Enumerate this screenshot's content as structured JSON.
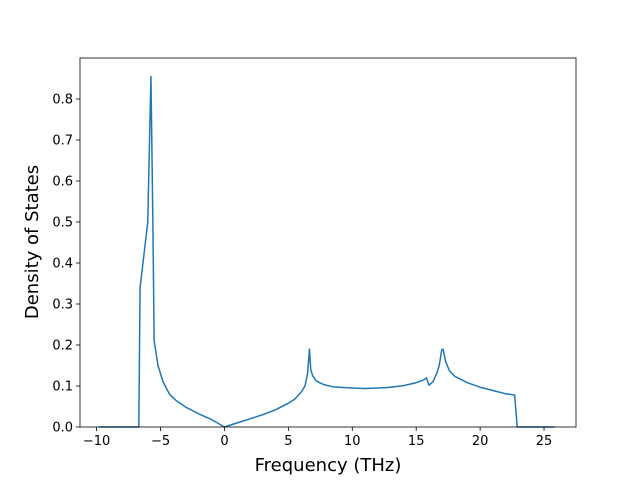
{
  "chart_data": {
    "type": "line",
    "title": "",
    "xlabel": "Frequency (THz)",
    "ylabel": "Density of States",
    "xlim": [
      -11.3,
      27.5
    ],
    "ylim": [
      0.0,
      0.9
    ],
    "xticks": [
      -10,
      -5,
      0,
      5,
      10,
      15,
      20,
      25
    ],
    "xtick_labels": [
      "−10",
      "−5",
      "0",
      "5",
      "10",
      "15",
      "20",
      "25"
    ],
    "yticks": [
      0.0,
      0.1,
      0.2,
      0.3,
      0.4,
      0.5,
      0.6,
      0.7,
      0.8
    ],
    "ytick_labels": [
      "0.0",
      "0.1",
      "0.2",
      "0.3",
      "0.4",
      "0.5",
      "0.6",
      "0.7",
      "0.8"
    ],
    "grid": false,
    "legend": "none",
    "line_color": "#1f77b4",
    "series": [
      {
        "x": [
          -9.8,
          -6.7,
          -6.6,
          -6.3,
          -6.0,
          -5.75,
          -5.6,
          -5.5,
          -5.2,
          -4.8,
          -4.3,
          -3.8,
          -3.0,
          -2.0,
          -1.0,
          0.0,
          1.0,
          2.0,
          3.0,
          4.0,
          5.0,
          5.5,
          6.0,
          6.3,
          6.5,
          6.65,
          6.75,
          6.9,
          7.2,
          7.8,
          8.5,
          10.0,
          11.0,
          12.0,
          13.0,
          14.0,
          15.0,
          15.6,
          15.8,
          16.0,
          16.3,
          16.6,
          16.8,
          17.0,
          17.1,
          17.3,
          17.6,
          18.0,
          19.0,
          20.0,
          21.0,
          22.0,
          22.7,
          22.9,
          25.8
        ],
        "y": [
          0.0,
          0.0,
          0.34,
          0.42,
          0.5,
          0.855,
          0.5,
          0.21,
          0.15,
          0.11,
          0.08,
          0.065,
          0.048,
          0.032,
          0.018,
          0.0,
          0.01,
          0.02,
          0.03,
          0.042,
          0.058,
          0.068,
          0.085,
          0.1,
          0.13,
          0.19,
          0.14,
          0.125,
          0.112,
          0.103,
          0.098,
          0.095,
          0.094,
          0.095,
          0.097,
          0.101,
          0.108,
          0.115,
          0.12,
          0.102,
          0.11,
          0.13,
          0.15,
          0.188,
          0.19,
          0.16,
          0.137,
          0.124,
          0.108,
          0.097,
          0.089,
          0.081,
          0.078,
          0.0,
          0.0
        ]
      }
    ]
  }
}
